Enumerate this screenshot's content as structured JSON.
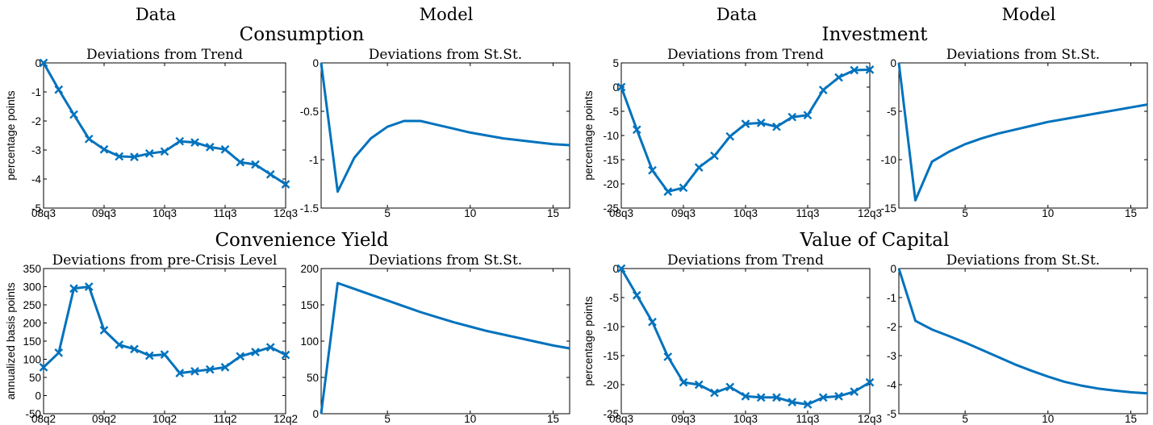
{
  "column_headers": [
    "Data",
    "Model",
    "Data",
    "Model"
  ],
  "chart_data": [
    {
      "type": "line",
      "variable_title": "Consumption",
      "title": "Deviations from Trend",
      "ylabel": "percentage points",
      "ylim": [
        -5,
        0
      ],
      "yticks": [
        0,
        -1,
        -2,
        -3,
        -4,
        -5
      ],
      "xlim": [
        0,
        16
      ],
      "xtick_positions": [
        0,
        4,
        8,
        12,
        16
      ],
      "xtick_labels": [
        "08q3",
        "09q3",
        "10q3",
        "11q3",
        "12q3"
      ],
      "markers": true,
      "x": [
        0,
        1,
        2,
        3,
        4,
        5,
        6,
        7,
        8,
        9,
        10,
        11,
        12,
        13,
        14,
        15,
        16
      ],
      "values": [
        0,
        -0.92,
        -1.78,
        -2.62,
        -2.98,
        -3.22,
        -3.24,
        -3.12,
        -3.05,
        -2.7,
        -2.74,
        -2.9,
        -2.98,
        -3.42,
        -3.5,
        -3.84,
        -4.18
      ]
    },
    {
      "type": "line",
      "title": "Deviations from St.St.",
      "ylim": [
        -1.5,
        0
      ],
      "yticks": [
        0,
        -0.5,
        -1,
        -1.5
      ],
      "xlim": [
        1,
        16
      ],
      "xtick_positions": [
        5,
        10,
        15
      ],
      "xtick_labels": [
        "5",
        "10",
        "15"
      ],
      "markers": false,
      "x": [
        1,
        2,
        3,
        4,
        5,
        6,
        7,
        8,
        9,
        10,
        11,
        12,
        13,
        14,
        15,
        16
      ],
      "values": [
        0,
        -1.33,
        -0.98,
        -0.78,
        -0.66,
        -0.6,
        -0.6,
        -0.64,
        -0.68,
        -0.72,
        -0.75,
        -0.78,
        -0.8,
        -0.82,
        -0.84,
        -0.85
      ]
    },
    {
      "type": "line",
      "variable_title": "Investment",
      "title": "Deviations from Trend",
      "ylabel": "percentage points",
      "ylim": [
        -25,
        5
      ],
      "yticks": [
        5,
        0,
        -5,
        -10,
        -15,
        -20,
        -25
      ],
      "xlim": [
        0,
        16
      ],
      "xtick_positions": [
        0,
        4,
        8,
        12,
        16
      ],
      "xtick_labels": [
        "08q3",
        "09q3",
        "10q3",
        "11q3",
        "12q3"
      ],
      "markers": true,
      "x": [
        0,
        1,
        2,
        3,
        4,
        5,
        6,
        7,
        8,
        9,
        10,
        11,
        12,
        13,
        14,
        15,
        16
      ],
      "values": [
        0,
        -8.8,
        -17.2,
        -21.6,
        -20.8,
        -16.6,
        -14.2,
        -10.2,
        -7.6,
        -7.4,
        -8.2,
        -6.2,
        -5.8,
        -0.6,
        2.0,
        3.5,
        3.6
      ]
    },
    {
      "type": "line",
      "title": "Deviations from St.St.",
      "ylim": [
        -15,
        0
      ],
      "yticks": [
        0,
        -5,
        -10,
        -15
      ],
      "xlim": [
        1,
        16
      ],
      "xtick_positions": [
        5,
        10,
        15
      ],
      "xtick_labels": [
        "5",
        "10",
        "15"
      ],
      "markers": false,
      "x": [
        1,
        2,
        3,
        4,
        5,
        6,
        7,
        8,
        9,
        10,
        11,
        12,
        13,
        14,
        15,
        16
      ],
      "values": [
        0,
        -14.2,
        -10.2,
        -9.2,
        -8.4,
        -7.8,
        -7.3,
        -6.9,
        -6.5,
        -6.1,
        -5.8,
        -5.5,
        -5.2,
        -4.9,
        -4.6,
        -4.3
      ]
    },
    {
      "type": "line",
      "variable_title": "Convenience Yield",
      "title": "Deviations from pre-Crisis Level",
      "ylabel": "annualized basis points",
      "ylim": [
        -50,
        350
      ],
      "yticks": [
        350,
        300,
        250,
        200,
        150,
        100,
        50,
        0,
        -50
      ],
      "xlim": [
        0,
        16
      ],
      "xtick_positions": [
        0,
        4,
        8,
        12,
        16
      ],
      "xtick_labels": [
        "08q2",
        "09q2",
        "10q2",
        "11q2",
        "12q2"
      ],
      "markers": true,
      "x": [
        0,
        1,
        2,
        3,
        4,
        5,
        6,
        7,
        8,
        9,
        10,
        11,
        12,
        13,
        14,
        15,
        16
      ],
      "values": [
        78,
        118,
        295,
        300,
        180,
        140,
        128,
        110,
        113,
        62,
        67,
        72,
        78,
        108,
        120,
        133,
        112
      ]
    },
    {
      "type": "line",
      "title": "Deviations from St.St.",
      "ylim": [
        0,
        200
      ],
      "yticks": [
        200,
        150,
        100,
        50,
        0
      ],
      "xlim": [
        1,
        16
      ],
      "xtick_positions": [
        5,
        10,
        15
      ],
      "xtick_labels": [
        "5",
        "10",
        "15"
      ],
      "markers": false,
      "x": [
        1,
        2,
        3,
        4,
        5,
        6,
        7,
        8,
        9,
        10,
        11,
        12,
        13,
        14,
        15,
        16
      ],
      "values": [
        0,
        180,
        172,
        164,
        156,
        148,
        140,
        133,
        126,
        120,
        114,
        109,
        104,
        99,
        94,
        90
      ]
    },
    {
      "type": "line",
      "variable_title": "Value of Capital",
      "title": "Deviations from Trend",
      "ylabel": "percentage points",
      "ylim": [
        -25,
        0
      ],
      "yticks": [
        0,
        -5,
        -10,
        -15,
        -20,
        -25
      ],
      "xlim": [
        0,
        16
      ],
      "xtick_positions": [
        0,
        4,
        8,
        12,
        16
      ],
      "xtick_labels": [
        "08q3",
        "09q3",
        "10q3",
        "11q3",
        "12q3"
      ],
      "markers": true,
      "x": [
        0,
        1,
        2,
        3,
        4,
        5,
        6,
        7,
        8,
        9,
        10,
        11,
        12,
        13,
        14,
        15,
        16
      ],
      "values": [
        0,
        -4.6,
        -9.2,
        -15.2,
        -19.6,
        -20.0,
        -21.4,
        -20.4,
        -22.0,
        -22.2,
        -22.2,
        -23.0,
        -23.4,
        -22.2,
        -22.0,
        -21.2,
        -19.6
      ]
    },
    {
      "type": "line",
      "title": "Deviations from St.St.",
      "ylim": [
        -5,
        0
      ],
      "yticks": [
        0,
        -1,
        -2,
        -3,
        -4,
        -5
      ],
      "xlim": [
        1,
        16
      ],
      "xtick_positions": [
        5,
        10,
        15
      ],
      "xtick_labels": [
        "5",
        "10",
        "15"
      ],
      "markers": false,
      "x": [
        1,
        2,
        3,
        4,
        5,
        6,
        7,
        8,
        9,
        10,
        11,
        12,
        13,
        14,
        15,
        16
      ],
      "values": [
        0,
        -1.8,
        -2.1,
        -2.32,
        -2.55,
        -2.8,
        -3.05,
        -3.3,
        -3.52,
        -3.72,
        -3.9,
        -4.03,
        -4.13,
        -4.2,
        -4.26,
        -4.3
      ]
    }
  ]
}
